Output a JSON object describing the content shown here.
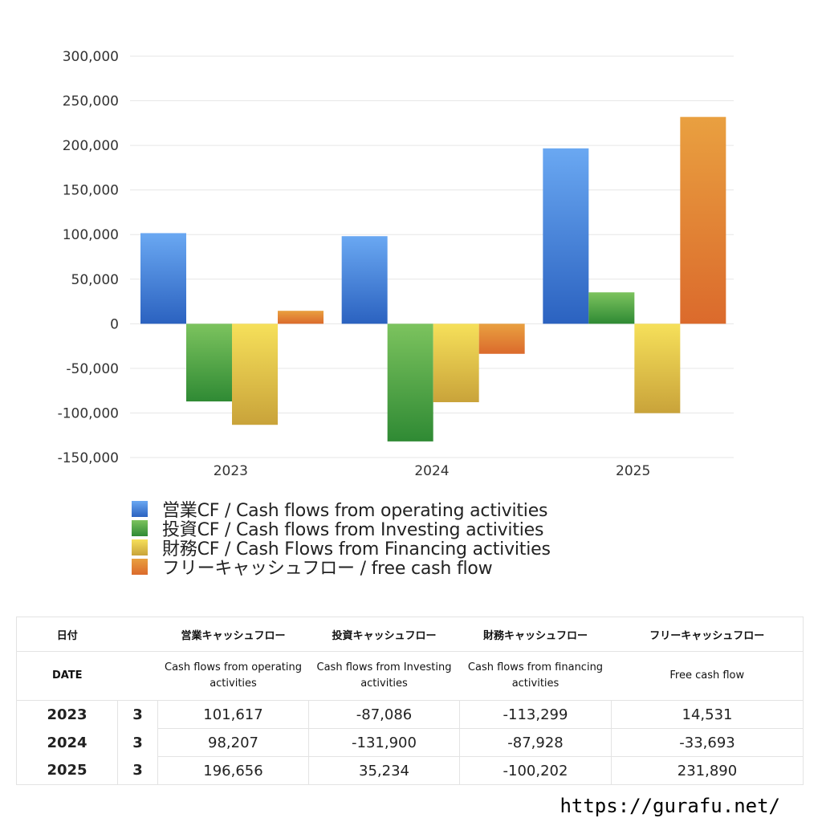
{
  "chart_data": {
    "type": "bar",
    "categories": [
      "2023",
      "2024",
      "2025"
    ],
    "ylim": [
      -150000,
      300000
    ],
    "yticks": [
      300000,
      250000,
      200000,
      150000,
      100000,
      50000,
      0,
      -50000,
      -100000,
      -150000
    ],
    "ytick_labels": [
      "300,000",
      "250,000",
      "200,000",
      "150,000",
      "100,000",
      "50,000",
      "0",
      "-50,000",
      "-100,000",
      "-150,000"
    ],
    "grid": true,
    "legend_position": "bottom",
    "series": [
      {
        "name": "営業CF / Cash flows from operating activities",
        "values": [
          101617,
          98207,
          196656
        ],
        "color": "#3f7fd6"
      },
      {
        "name": "投資CF / Cash flows from Investing activities",
        "values": [
          -87086,
          -131900,
          35234
        ],
        "color": "#4e9e42"
      },
      {
        "name": "財務CF / Cash Flows from Financing activities",
        "values": [
          -113299,
          -87928,
          -100202
        ],
        "color": "#e6c43e"
      },
      {
        "name": "フリーキャッシュフロー / free cash flow",
        "values": [
          14531,
          -33693,
          231890
        ],
        "color": "#e07a30"
      }
    ]
  },
  "table": {
    "header_jp": {
      "date": "日付",
      "operating": "営業キャッシュフロー",
      "investing": "投資キャッシュフロー",
      "financing": "財務キャッシュフロー",
      "fcf": "フリーキャッシュフロー"
    },
    "header_en": {
      "date": "DATE",
      "operating": "Cash flows from operating activities",
      "investing": "Cash flows from Investing activities",
      "financing": "Cash flows from financing activities",
      "fcf": "Free cash flow"
    },
    "rows": [
      {
        "year": "2023",
        "month": "3",
        "operating": "101,617",
        "investing": "-87,086",
        "financing": "-113,299",
        "fcf": "14,531"
      },
      {
        "year": "2024",
        "month": "3",
        "operating": "98,207",
        "investing": "-131,900",
        "financing": "-87,928",
        "fcf": "-33,693"
      },
      {
        "year": "2025",
        "month": "3",
        "operating": "196,656",
        "investing": "35,234",
        "financing": "-100,202",
        "fcf": "231,890"
      }
    ]
  },
  "footer": {
    "url": "https://gurafu.net/"
  }
}
